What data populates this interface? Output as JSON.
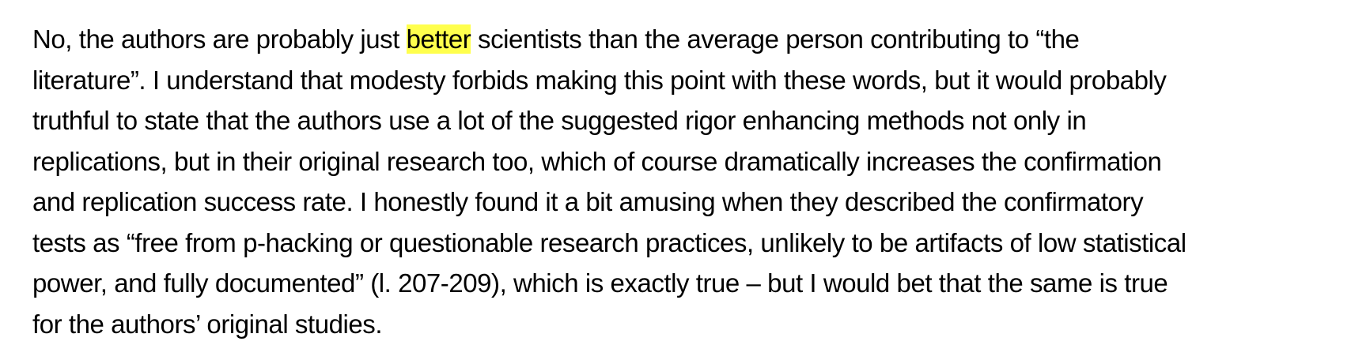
{
  "highlight_color": "#ffff4d",
  "paragraph": {
    "line1_before": "No, the authors are probably just ",
    "line1_highlight": "better",
    "line1_after": " scientists than the average person contributing to “the",
    "line2": "literature”. I understand that modesty forbids making this point with these words, but it would probably",
    "line3": "truthful to state that the authors use a lot of the suggested rigor enhancing methods not only in",
    "line4": "replications, but in their original research too, which of course dramatically increases the confirmation",
    "line5": "and replication success rate. I honestly found it a bit amusing when they described the confirmatory",
    "line6": "tests as “free from p-hacking or questionable research practices, unlikely to be artifacts of low statistical",
    "line7": "power, and fully documented” (l. 207-209), which is exactly true – but I would bet that the same is true",
    "line8": "for the authors’ original studies."
  }
}
